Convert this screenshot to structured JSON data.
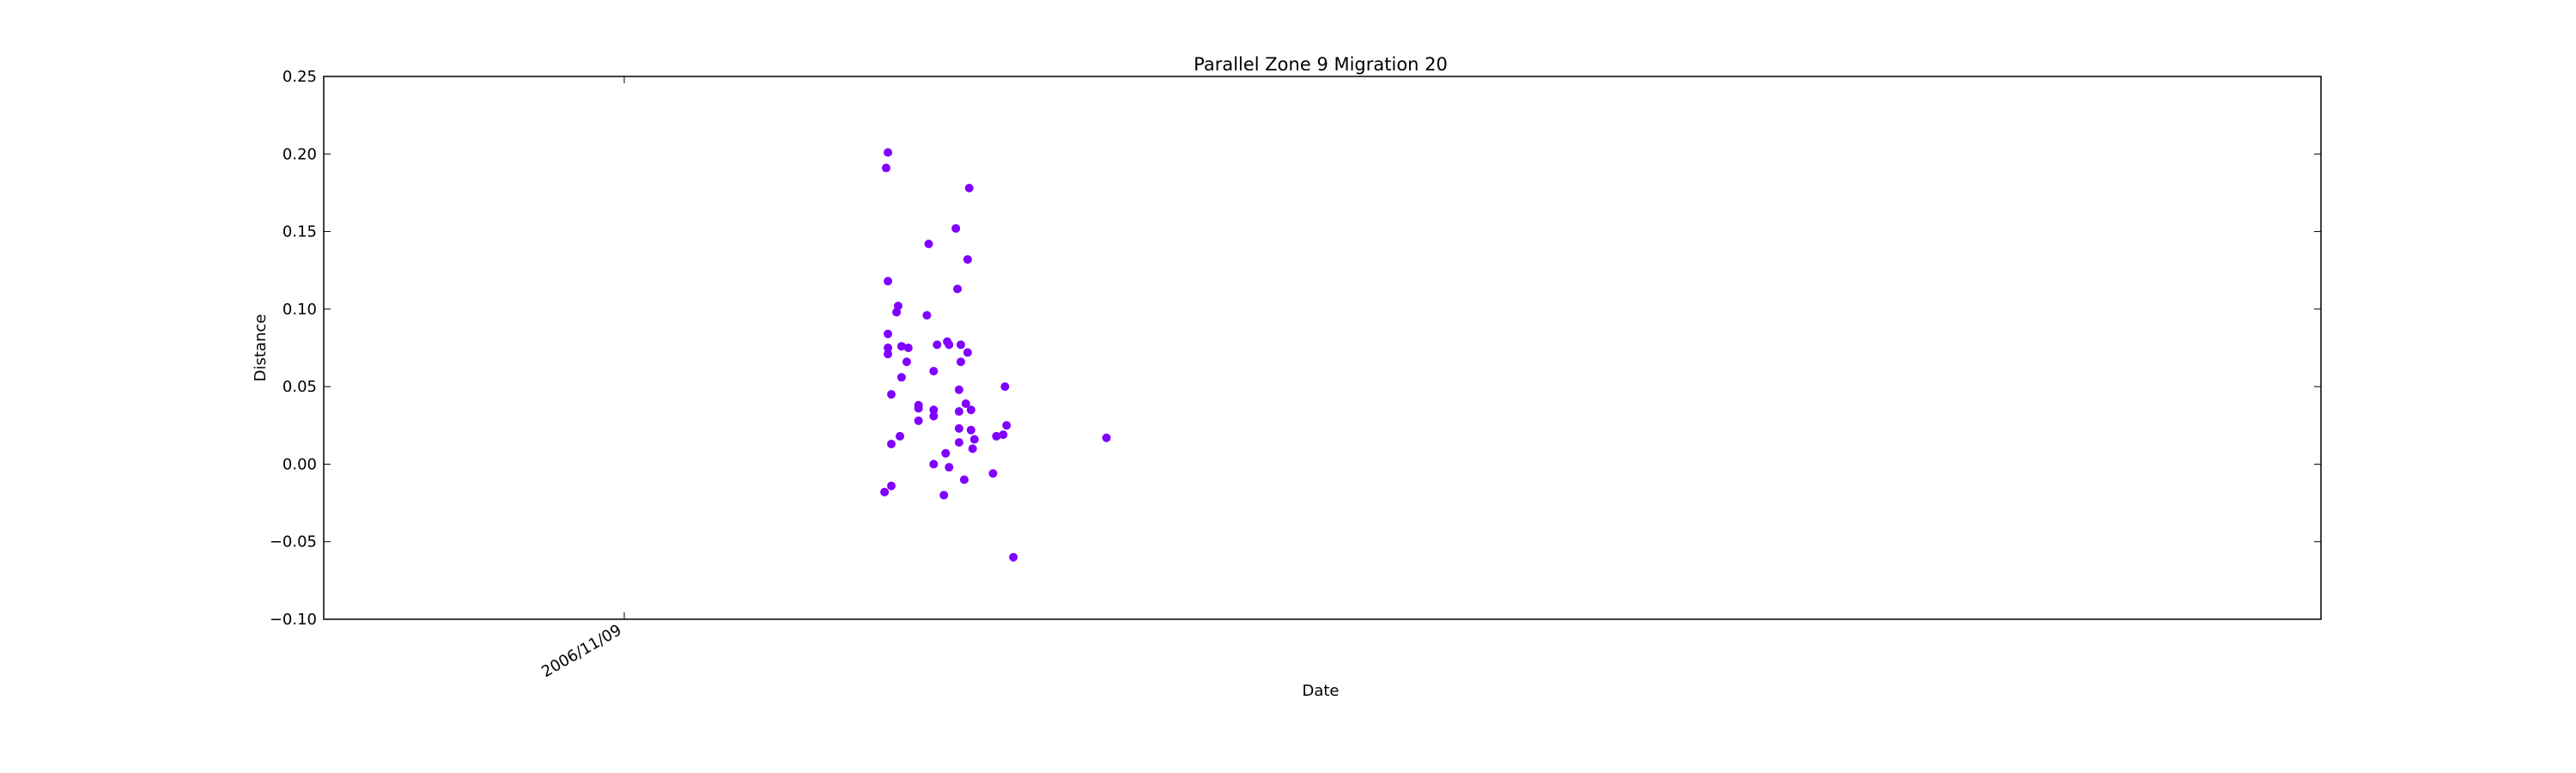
{
  "chart_data": {
    "type": "scatter",
    "title": "Parallel Zone 9 Migration 20",
    "xlabel": "Date",
    "ylabel": "Distance",
    "ylim": [
      -0.1,
      0.25
    ],
    "y_ticks": [
      "−0.10",
      "−0.05",
      "0.00",
      "0.05",
      "0.10",
      "0.15",
      "0.20",
      "0.25"
    ],
    "y_tick_values": [
      -0.1,
      -0.05,
      0.0,
      0.05,
      0.1,
      0.15,
      0.2,
      0.25
    ],
    "x_tick_labels": [
      "2006/11/09"
    ],
    "grid": false,
    "marker_color": "#7f00ff",
    "points": [
      {
        "x": 0.2825,
        "y": 0.201
      },
      {
        "x": 0.2816,
        "y": 0.191
      },
      {
        "x": 0.2825,
        "y": 0.118
      },
      {
        "x": 0.2825,
        "y": 0.084
      },
      {
        "x": 0.2825,
        "y": 0.075
      },
      {
        "x": 0.2825,
        "y": 0.071
      },
      {
        "x": 0.2842,
        "y": 0.045
      },
      {
        "x": 0.2842,
        "y": 0.013
      },
      {
        "x": 0.2808,
        "y": -0.018
      },
      {
        "x": 0.2842,
        "y": -0.014
      },
      {
        "x": 0.2876,
        "y": 0.102
      },
      {
        "x": 0.2868,
        "y": 0.098
      },
      {
        "x": 0.2893,
        "y": 0.076
      },
      {
        "x": 0.2927,
        "y": 0.075
      },
      {
        "x": 0.2893,
        "y": 0.056
      },
      {
        "x": 0.2919,
        "y": 0.066
      },
      {
        "x": 0.2885,
        "y": 0.018
      },
      {
        "x": 0.3029,
        "y": 0.142
      },
      {
        "x": 0.302,
        "y": 0.096
      },
      {
        "x": 0.3071,
        "y": 0.077
      },
      {
        "x": 0.3054,
        "y": 0.06
      },
      {
        "x": 0.2978,
        "y": 0.038
      },
      {
        "x": 0.2978,
        "y": 0.036
      },
      {
        "x": 0.3054,
        "y": 0.035
      },
      {
        "x": 0.3054,
        "y": 0.031
      },
      {
        "x": 0.2978,
        "y": 0.028
      },
      {
        "x": 0.3054,
        "y": 0.0
      },
      {
        "x": 0.3114,
        "y": 0.007
      },
      {
        "x": 0.3105,
        "y": -0.02
      },
      {
        "x": 0.3131,
        "y": -0.002
      },
      {
        "x": 0.3122,
        "y": 0.079
      },
      {
        "x": 0.3131,
        "y": 0.077
      },
      {
        "x": 0.3165,
        "y": 0.152
      },
      {
        "x": 0.3232,
        "y": 0.178
      },
      {
        "x": 0.3224,
        "y": 0.132
      },
      {
        "x": 0.3173,
        "y": 0.113
      },
      {
        "x": 0.319,
        "y": 0.077
      },
      {
        "x": 0.3224,
        "y": 0.072
      },
      {
        "x": 0.319,
        "y": 0.066
      },
      {
        "x": 0.3181,
        "y": 0.048
      },
      {
        "x": 0.3215,
        "y": 0.039
      },
      {
        "x": 0.3181,
        "y": 0.034
      },
      {
        "x": 0.3241,
        "y": 0.035
      },
      {
        "x": 0.3181,
        "y": 0.023
      },
      {
        "x": 0.3241,
        "y": 0.022
      },
      {
        "x": 0.3181,
        "y": 0.014
      },
      {
        "x": 0.3258,
        "y": 0.016
      },
      {
        "x": 0.3249,
        "y": 0.01
      },
      {
        "x": 0.3207,
        "y": -0.01
      },
      {
        "x": 0.3351,
        "y": -0.006
      },
      {
        "x": 0.3368,
        "y": 0.018
      },
      {
        "x": 0.3411,
        "y": 0.05
      },
      {
        "x": 0.3419,
        "y": 0.025
      },
      {
        "x": 0.3402,
        "y": 0.019
      },
      {
        "x": 0.3453,
        "y": -0.06
      },
      {
        "x": 0.3919,
        "y": 0.017
      }
    ]
  }
}
